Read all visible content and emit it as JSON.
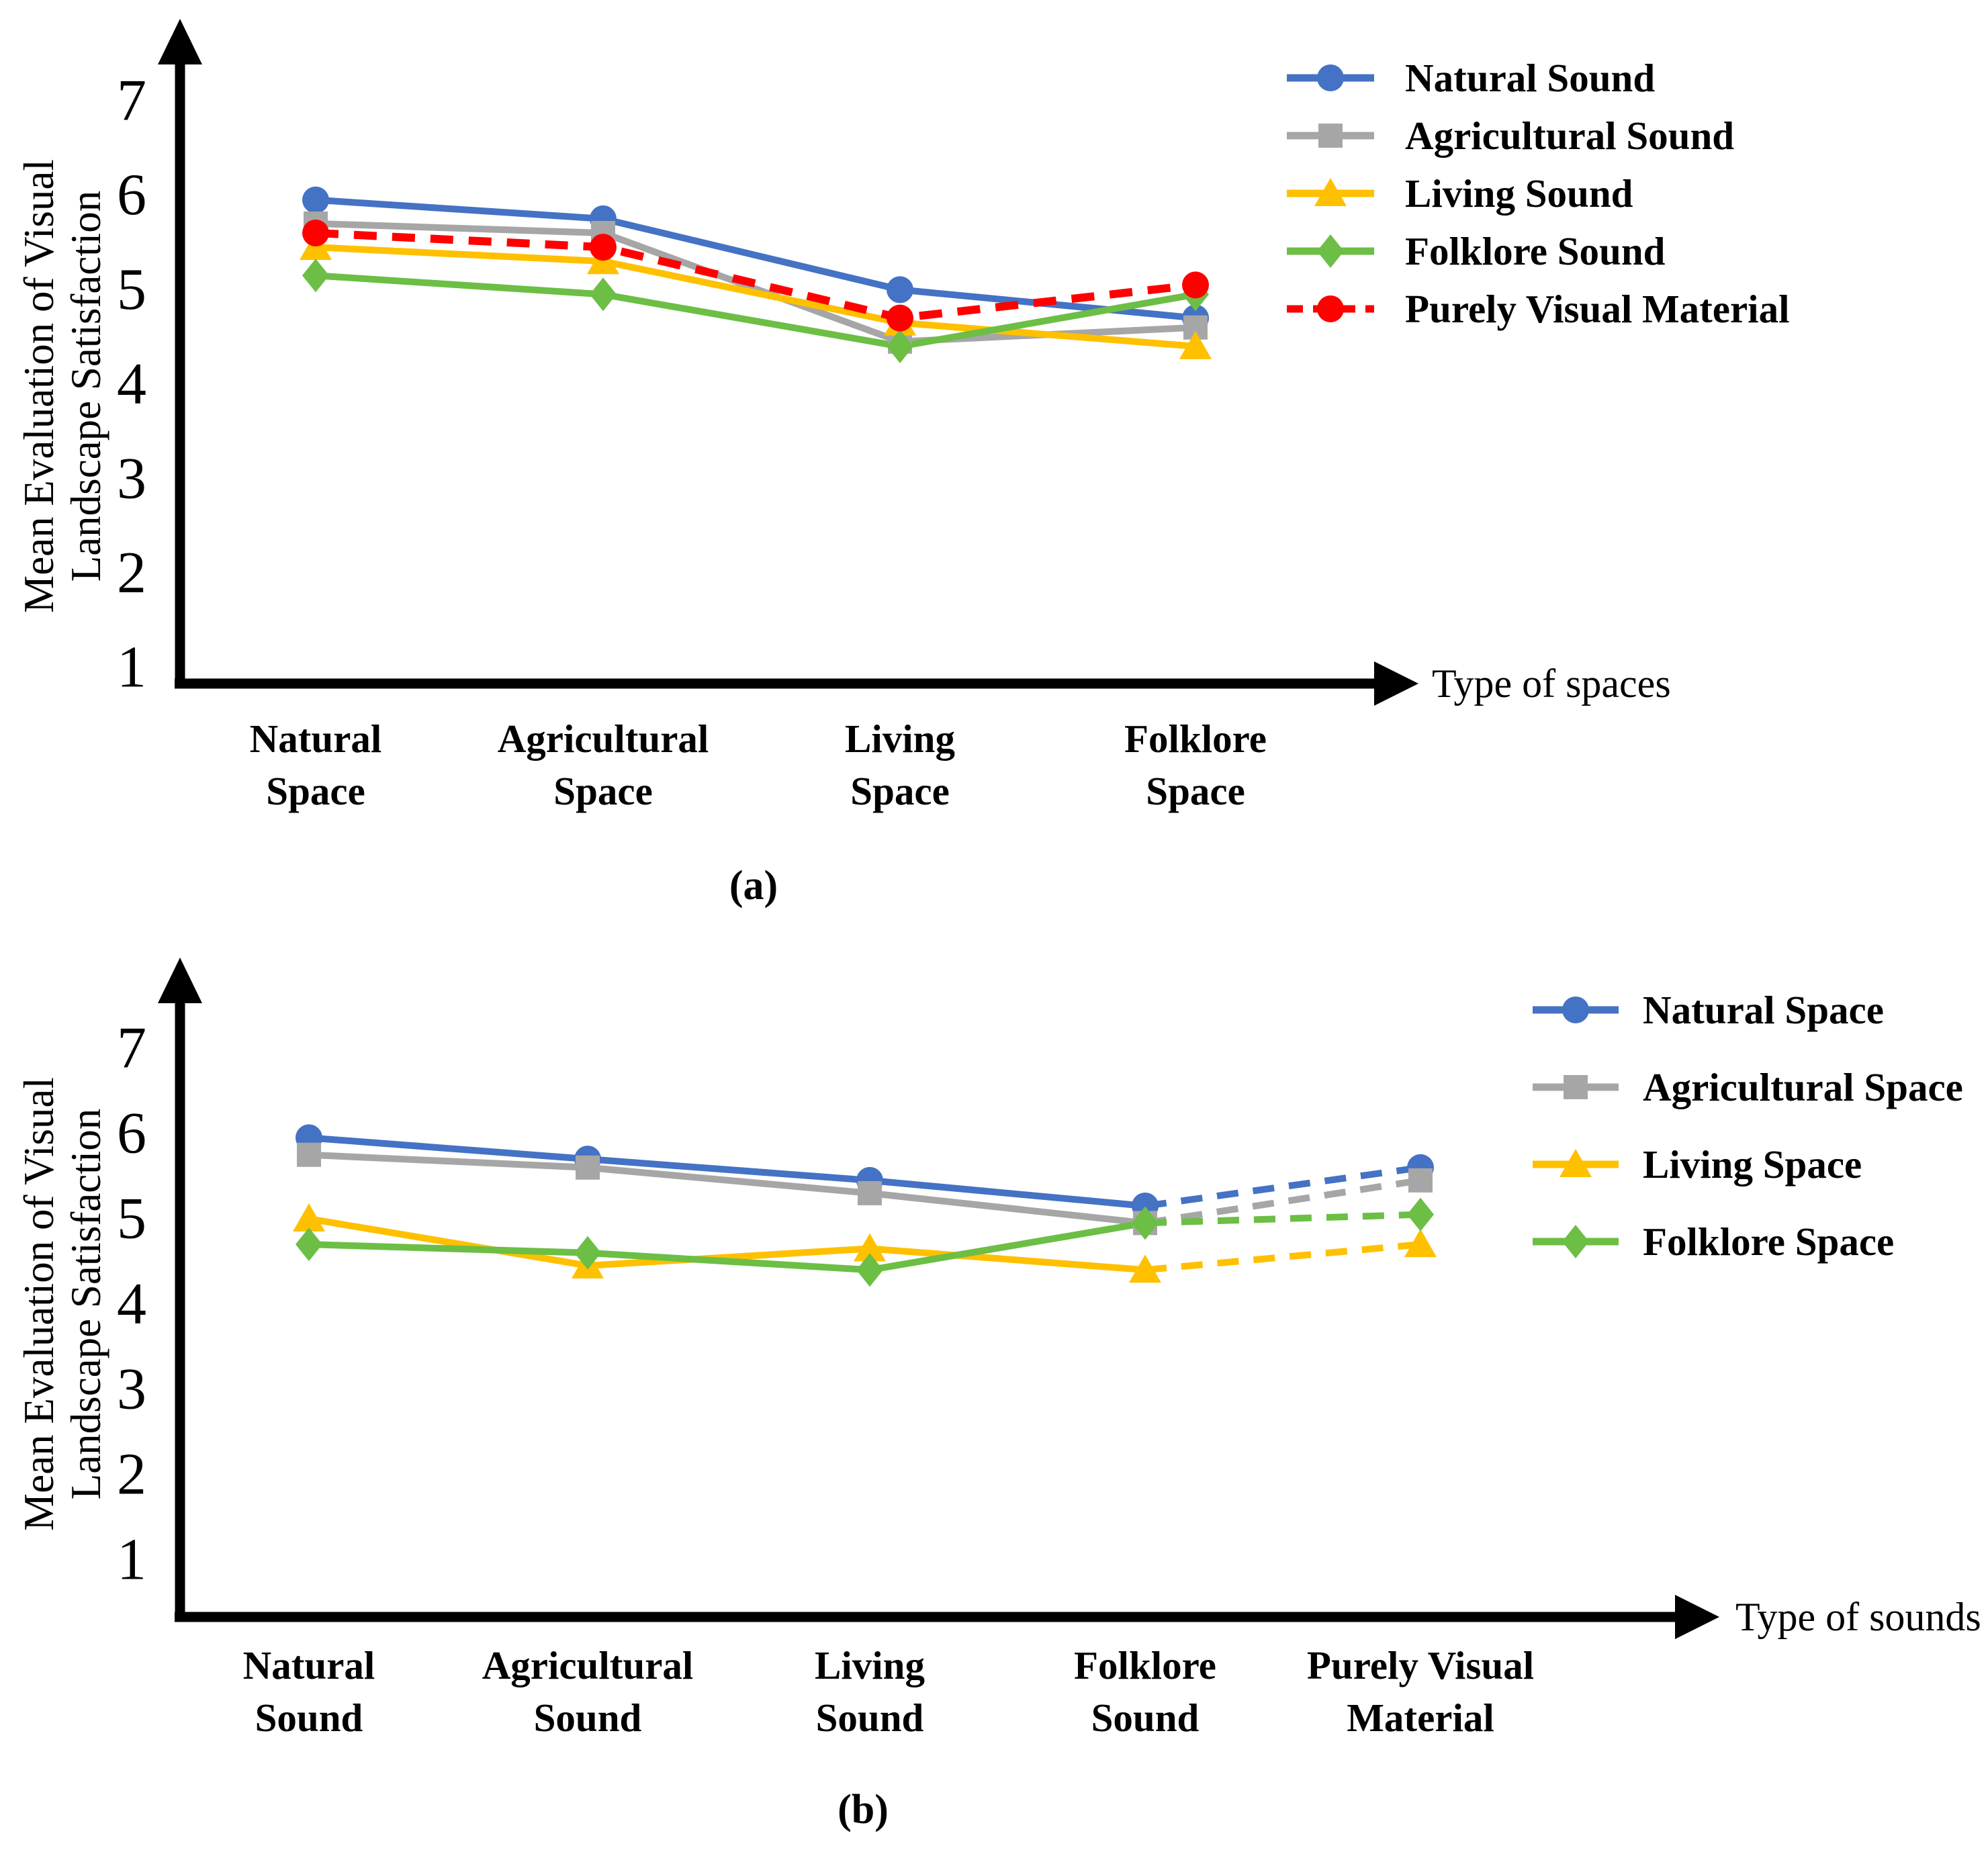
{
  "figure": {
    "background": "#FFFFFF",
    "colors": {
      "natural": "#4472C4",
      "agricultural": "#A6A6A6",
      "living": "#FFC000",
      "folklore": "#6CBE45",
      "visual": "#FF0000",
      "axis": "#000000"
    }
  },
  "chart_data": [
    {
      "id": "a",
      "type": "line",
      "caption": "(a)",
      "xlabel": "Type of spaces",
      "ylabel_lines": [
        "Mean Evaluation of Visual",
        "Landscape Satisfaction"
      ],
      "yticks": [
        7,
        6,
        5,
        4,
        3,
        2,
        1
      ],
      "ylim": [
        1,
        7
      ],
      "grid": false,
      "legend_position": "top-right",
      "categories": [
        [
          "Natural",
          "Space"
        ],
        [
          "Agricultural",
          "Space"
        ],
        [
          "Living",
          "Space"
        ],
        [
          "Folklore",
          "Space"
        ]
      ],
      "series": [
        {
          "name": "Natural Sound",
          "marker": "circle",
          "color_key": "natural",
          "dashed": false,
          "values": [
            5.95,
            5.75,
            5.0,
            4.7
          ]
        },
        {
          "name": "Agricultural Sound",
          "marker": "square",
          "color_key": "agricultural",
          "dashed": false,
          "values": [
            5.7,
            5.6,
            4.45,
            4.6
          ]
        },
        {
          "name": "Living Sound",
          "marker": "triangle",
          "color_key": "living",
          "dashed": false,
          "values": [
            5.45,
            5.3,
            4.65,
            4.4
          ]
        },
        {
          "name": "Folklore Sound",
          "marker": "diamond",
          "color_key": "folklore",
          "dashed": false,
          "values": [
            5.15,
            4.95,
            4.4,
            4.95
          ]
        },
        {
          "name": "Purely Visual Material",
          "marker": "circle",
          "color_key": "visual",
          "dashed": true,
          "values": [
            5.6,
            5.45,
            4.7,
            5.05
          ]
        }
      ]
    },
    {
      "id": "b",
      "type": "line",
      "caption": "(b)",
      "xlabel": "Type of sounds",
      "ylabel_lines": [
        "Mean Evaluation of Visual",
        "Landscape Satisfaction"
      ],
      "yticks": [
        7,
        6,
        5,
        4,
        3,
        2,
        1
      ],
      "ylim": [
        1,
        7
      ],
      "grid": false,
      "legend_position": "top-right",
      "categories": [
        [
          "Natural",
          "Sound"
        ],
        [
          "Agricultural",
          "Sound"
        ],
        [
          "Living",
          "Sound"
        ],
        [
          "Folklore",
          "Sound"
        ],
        [
          "Purely Visual",
          "Material"
        ]
      ],
      "series": [
        {
          "name": "Natural Space",
          "marker": "circle",
          "color_key": "natural",
          "dash_from": 3,
          "values": [
            5.95,
            5.7,
            5.45,
            5.15,
            5.6
          ]
        },
        {
          "name": "Agricultural Space",
          "marker": "square",
          "color_key": "agricultural",
          "dash_from": 3,
          "values": [
            5.75,
            5.6,
            5.3,
            4.95,
            5.45
          ]
        },
        {
          "name": "Living Space",
          "marker": "triangle",
          "color_key": "living",
          "dash_from": 3,
          "values": [
            5.0,
            4.45,
            4.65,
            4.4,
            4.7
          ]
        },
        {
          "name": "Folklore Space",
          "marker": "diamond",
          "color_key": "folklore",
          "dash_from": 3,
          "values": [
            4.7,
            4.6,
            4.4,
            4.95,
            5.05
          ]
        }
      ]
    }
  ]
}
